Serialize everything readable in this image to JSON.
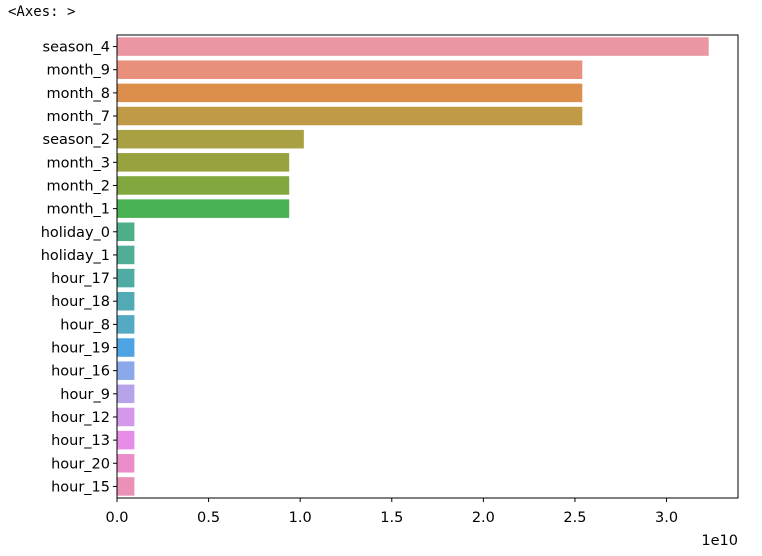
{
  "header": {
    "axes_repr": "<Axes: >"
  },
  "chart_data": {
    "type": "bar",
    "orientation": "horizontal",
    "categories": [
      "season_4",
      "month_9",
      "month_8",
      "month_7",
      "season_2",
      "month_3",
      "month_2",
      "month_1",
      "holiday_0",
      "holiday_1",
      "hour_17",
      "hour_18",
      "hour_8",
      "hour_19",
      "hour_16",
      "hour_9",
      "hour_12",
      "hour_13",
      "hour_20",
      "hour_15"
    ],
    "values": [
      32300000000.0,
      25400000000.0,
      25400000000.0,
      25400000000.0,
      10200000000.0,
      9400000000.0,
      9400000000.0,
      9400000000.0,
      950000000.0,
      950000000.0,
      950000000.0,
      950000000.0,
      950000000.0,
      950000000.0,
      950000000.0,
      950000000.0,
      950000000.0,
      950000000.0,
      950000000.0,
      950000000.0
    ],
    "colors": [
      "#ea96a3",
      "#e8907b",
      "#db8f4a",
      "#c09a47",
      "#a9a044",
      "#98a340",
      "#82a73f",
      "#47b153",
      "#4daf87",
      "#4fad98",
      "#50aba5",
      "#52aab5",
      "#54a9c3",
      "#4da3e4",
      "#8aa8ea",
      "#b8a2ea",
      "#d498ea",
      "#e58de7",
      "#e98ec9",
      "#ea91b7"
    ],
    "xticks": [
      0,
      0.5,
      1.0,
      1.5,
      2.0,
      2.5,
      3.0
    ],
    "xtick_labels": [
      "0.0",
      "0.5",
      "1.0",
      "1.5",
      "2.0",
      "2.5",
      "3.0"
    ],
    "x_offset_label": "1e10",
    "xlim": [
      0,
      33900000000.0
    ],
    "title": "",
    "xlabel": "",
    "ylabel": "",
    "grid": false
  }
}
